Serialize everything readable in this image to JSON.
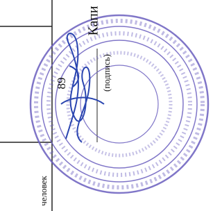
{
  "header": {
    "title": "Капи"
  },
  "table": {
    "number": "89",
    "unit": "человек"
  },
  "signature": {
    "caption": "(подпись)"
  }
}
